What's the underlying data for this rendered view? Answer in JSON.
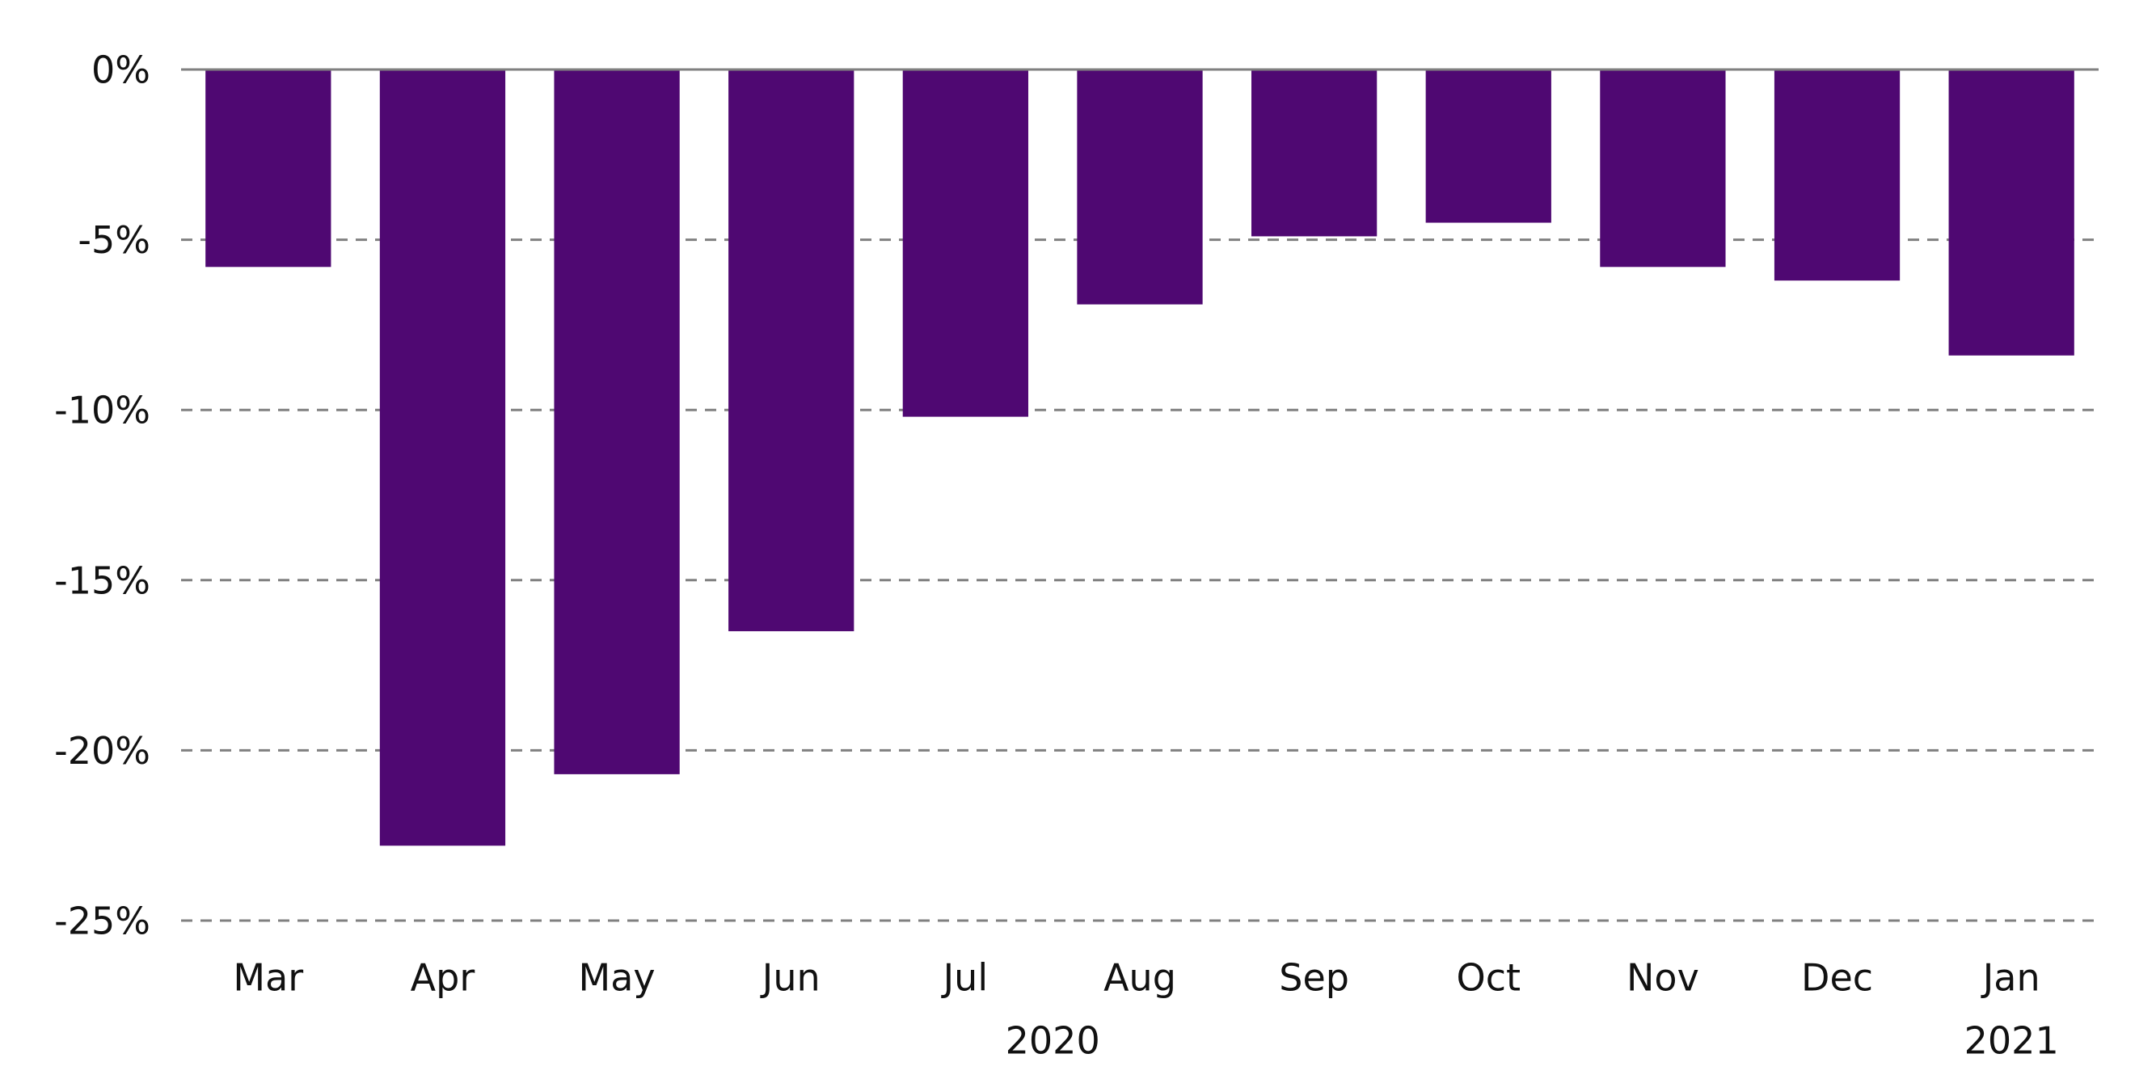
{
  "chart_data": {
    "type": "bar",
    "categories": [
      "Mar",
      "Apr",
      "May",
      "Jun",
      "Jul",
      "Aug",
      "Sep",
      "Oct",
      "Nov",
      "Dec",
      "Jan"
    ],
    "year_labels": [
      "2020",
      "2021"
    ],
    "values": [
      -5.8,
      -22.8,
      -20.7,
      -16.5,
      -10.2,
      -6.9,
      -4.9,
      -4.5,
      -5.8,
      -6.2,
      -8.4
    ],
    "color": "#4f0872",
    "ylim": [
      -25,
      0
    ],
    "yticks": [
      {
        "value": 0,
        "label": "0%"
      },
      {
        "value": -5,
        "label": "-5%"
      },
      {
        "value": -10,
        "label": "-10%"
      },
      {
        "value": -15,
        "label": "-15%"
      },
      {
        "value": -20,
        "label": "-20%"
      },
      {
        "value": -25,
        "label": "-25%"
      }
    ],
    "grid": true
  }
}
